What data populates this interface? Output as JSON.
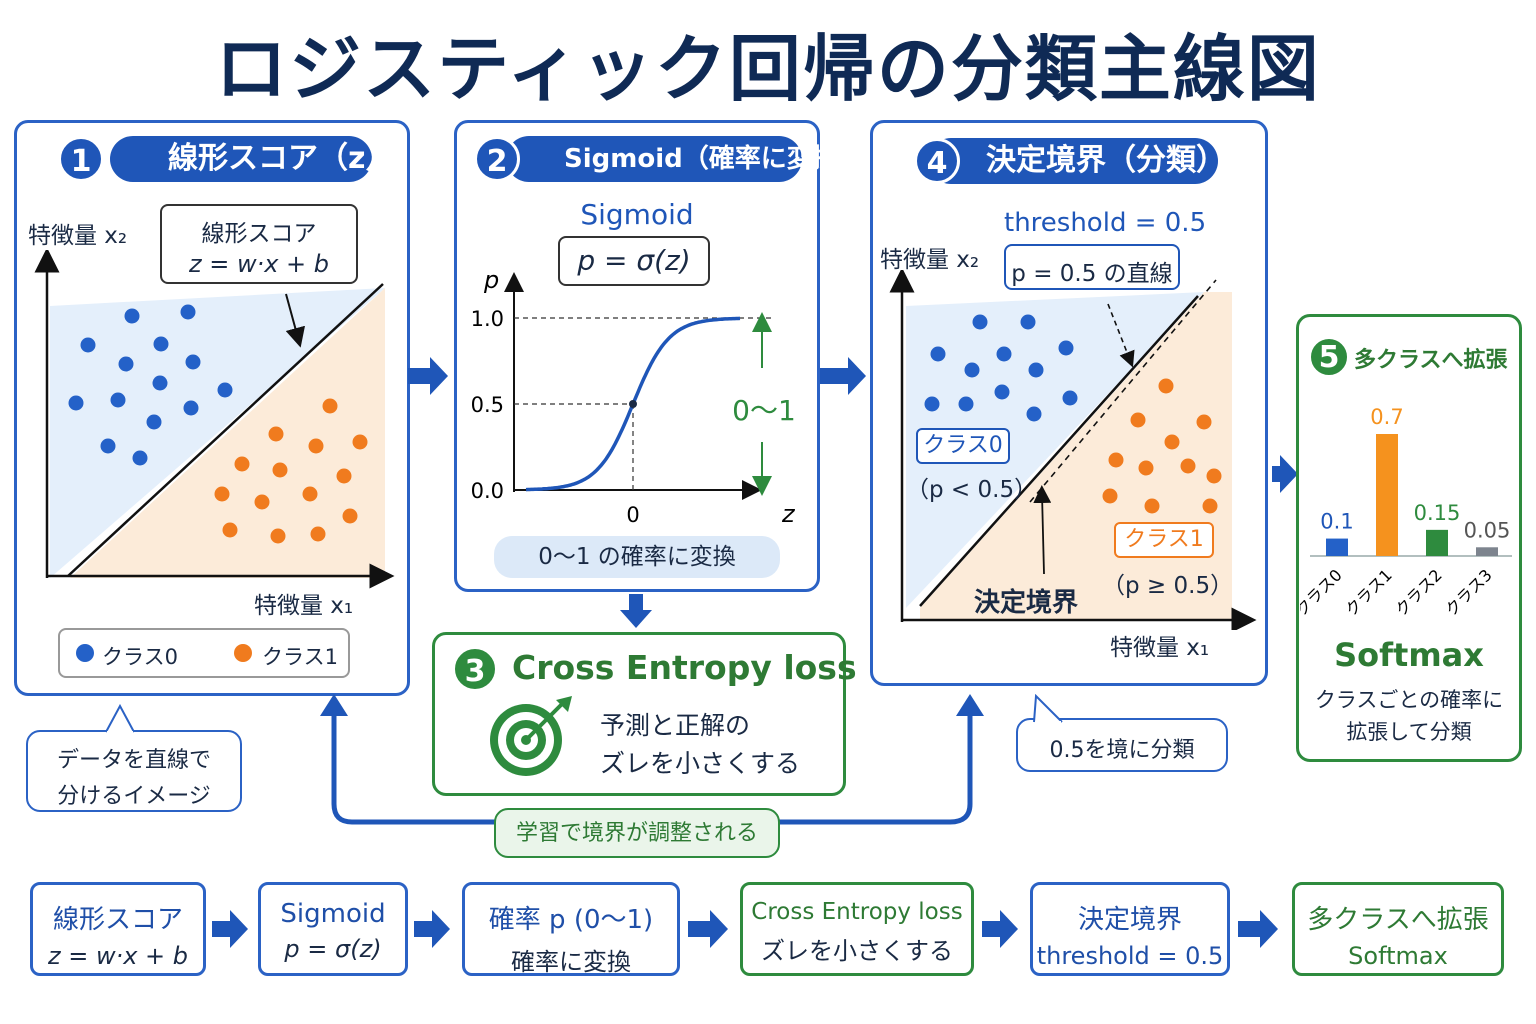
{
  "title": "ロジスティック回帰の分類主線図",
  "panel1": {
    "number": "1",
    "heading": "線形スコア（z）",
    "y_axis_label": "特徴量 x₂",
    "x_axis_label": "特徴量 x₁",
    "formula_box_line1": "線形スコア",
    "formula_box_line2": "z = w·x + b",
    "legend_class0": "クラス0",
    "legend_class1": "クラス1",
    "callout_line1": "データを直線で",
    "callout_line2": "分けるイメージ"
  },
  "panel2": {
    "number": "2",
    "heading": "Sigmoid（確率に変換）",
    "subtitle": "Sigmoid",
    "formula": "p = σ(z)",
    "p_label": "p",
    "z_label": "z",
    "range_label": "0～1",
    "caption": "0～1 の確率に変換"
  },
  "panel3": {
    "number": "3",
    "heading": "Cross Entropy loss",
    "line1": "予測と正解の",
    "line2": "ズレを小さくする",
    "feedback_label": "学習で境界が調整される"
  },
  "panel4": {
    "number": "4",
    "heading": "決定境界（分類）",
    "threshold": "threshold = 0.5",
    "line_box": "p = 0.5 の直線",
    "y_axis_label": "特徴量 x₂",
    "x_axis_label": "特徴量 x₁",
    "class0_label": "クラス0",
    "class0_cond": "（p < 0.5）",
    "class1_label": "クラス1",
    "class1_cond": "（p ≥ 0.5）",
    "boundary_label": "決定境界",
    "callout": "0.5を境に分類"
  },
  "panel5": {
    "number": "5",
    "heading": "多クラスへ拡張",
    "softmax": "Softmax",
    "desc_line1": "クラスごとの確率に",
    "desc_line2": "拡張して分類"
  },
  "flow": [
    {
      "line1": "線形スコア",
      "line2": "z = w·x + b",
      "green": false
    },
    {
      "line1": "Sigmoid",
      "line2": "p = σ(z)",
      "green": false
    },
    {
      "line1": "確率 p (0～1)",
      "line2": "確率に変換",
      "green": false
    },
    {
      "line1": "Cross Entropy loss",
      "line2": "ズレを小さくする",
      "green": true
    },
    {
      "line1": "決定境界",
      "line2": "threshold = 0.5",
      "green": false
    },
    {
      "line1": "多クラスへ拡張",
      "line2": "Softmax",
      "green": true
    }
  ],
  "colors": {
    "blue": "#1f56b8",
    "green": "#2e8b3e",
    "class0": "#2461c8",
    "class1": "#f07b1e",
    "region0": "#e4effb",
    "region1": "#fcebd9"
  },
  "chart_data": [
    {
      "type": "line",
      "chart": "sigmoid",
      "x_ticks": [
        "0"
      ],
      "y_ticks": [
        "0.0",
        "0.5",
        "1.0"
      ],
      "ylim": [
        0,
        1
      ],
      "xlim": [
        -6,
        6
      ],
      "series": [
        {
          "x": [
            -6,
            -4,
            -3,
            -2,
            -1,
            0,
            1,
            2,
            3,
            4,
            6
          ],
          "y": [
            0.0025,
            0.018,
            0.047,
            0.119,
            0.269,
            0.5,
            0.731,
            0.881,
            0.953,
            0.982,
            0.9975
          ]
        }
      ],
      "marked_point": {
        "x": 0,
        "y": 0.5
      }
    },
    {
      "type": "bar",
      "chart": "softmax",
      "categories": [
        "クラス0",
        "クラス1",
        "クラス2",
        "クラス3"
      ],
      "values": [
        0.1,
        0.7,
        0.15,
        0.05
      ],
      "value_labels": [
        "0.1",
        "0.7",
        "0.15",
        "0.05"
      ],
      "bar_colors": [
        "#2461c8",
        "#f5921e",
        "#2e8b3e",
        "#7d848e"
      ]
    }
  ]
}
